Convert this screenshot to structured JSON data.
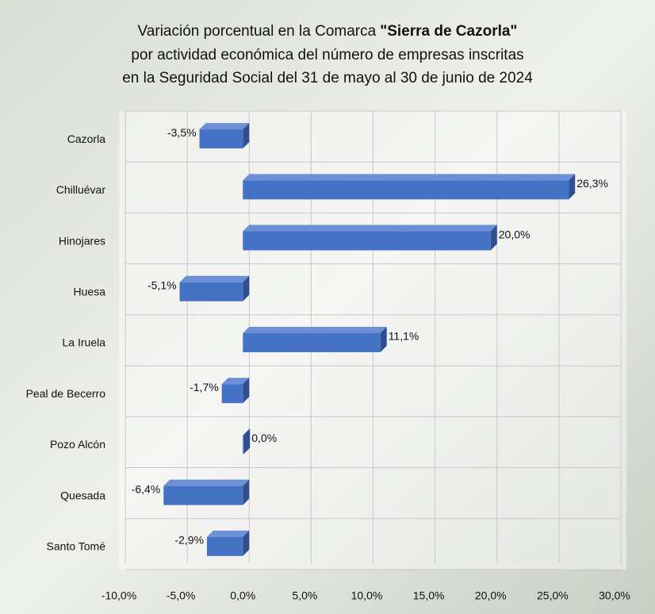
{
  "chart_data": {
    "type": "bar",
    "orientation": "horizontal",
    "title": [
      "Variación porcentual en la Comarca",
      "\"Sierra de Cazorla\"",
      "por actividad económica del número de empresas inscritas",
      "en la Seguridad Social del 31 de mayo al 30 de junio de 2024"
    ],
    "categories": [
      "Cazorla",
      "Chilluévar",
      "Hinojares",
      "Huesa",
      "La Iruela",
      "Peal de Becerro",
      "Pozo Alcón",
      "Quesada",
      "Santo Tomé"
    ],
    "values": [
      -3.5,
      26.3,
      20.0,
      -5.1,
      11.1,
      -1.7,
      0.0,
      -6.4,
      -2.9
    ],
    "value_labels": [
      "-3,5%",
      "26,3%",
      "20,0%",
      "-5,1%",
      "11,1%",
      "-1,7%",
      "0,0%",
      "-6,4%",
      "-2,9%"
    ],
    "color": "#4472c4",
    "xlim": [
      -10,
      30
    ],
    "xticks": [
      {
        "value": -10,
        "label": "-10,0%"
      },
      {
        "value": -5,
        "label": "-5,0%"
      },
      {
        "value": 0,
        "label": "0,0%"
      },
      {
        "value": 5,
        "label": "5,0%"
      },
      {
        "value": 10,
        "label": "10,0%"
      },
      {
        "value": 15,
        "label": "15,0%"
      },
      {
        "value": 20,
        "label": "20,0%"
      },
      {
        "value": 25,
        "label": "25,0%"
      },
      {
        "value": 30,
        "label": "30,0%"
      }
    ],
    "grid": true
  }
}
